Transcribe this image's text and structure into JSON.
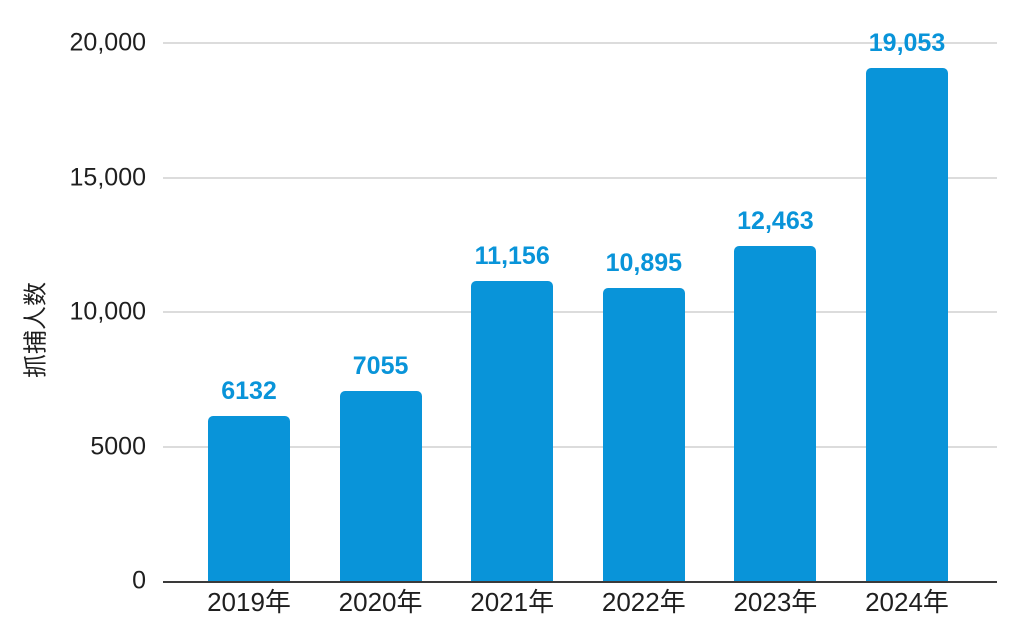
{
  "chart_data": {
    "type": "bar",
    "title": "",
    "xlabel": "",
    "ylabel": "抓捕人数",
    "categories": [
      "2019年",
      "2020年",
      "2021年",
      "2022年",
      "2023年",
      "2024年"
    ],
    "values": [
      6132,
      7055,
      11156,
      10895,
      12463,
      19053
    ],
    "value_labels": [
      "6132",
      "7055",
      "11,156",
      "10,895",
      "12,463",
      "19,053"
    ],
    "ylim": [
      0,
      20000
    ],
    "yticks": [
      {
        "label": "0",
        "value": 0
      },
      {
        "label": "5000",
        "value": 5000
      },
      {
        "label": "10,000",
        "value": 10000
      },
      {
        "label": "15,000",
        "value": 15000
      },
      {
        "label": "20,000",
        "value": 20000
      }
    ],
    "grid": true,
    "legend": "none",
    "colors": {
      "bar": "#0994d9",
      "value_label": "#0994d9",
      "gridline": "#dcdcdc",
      "axis_line": "#3a3a3a",
      "text": "#1f1f1f",
      "background": "#ffffff"
    }
  }
}
